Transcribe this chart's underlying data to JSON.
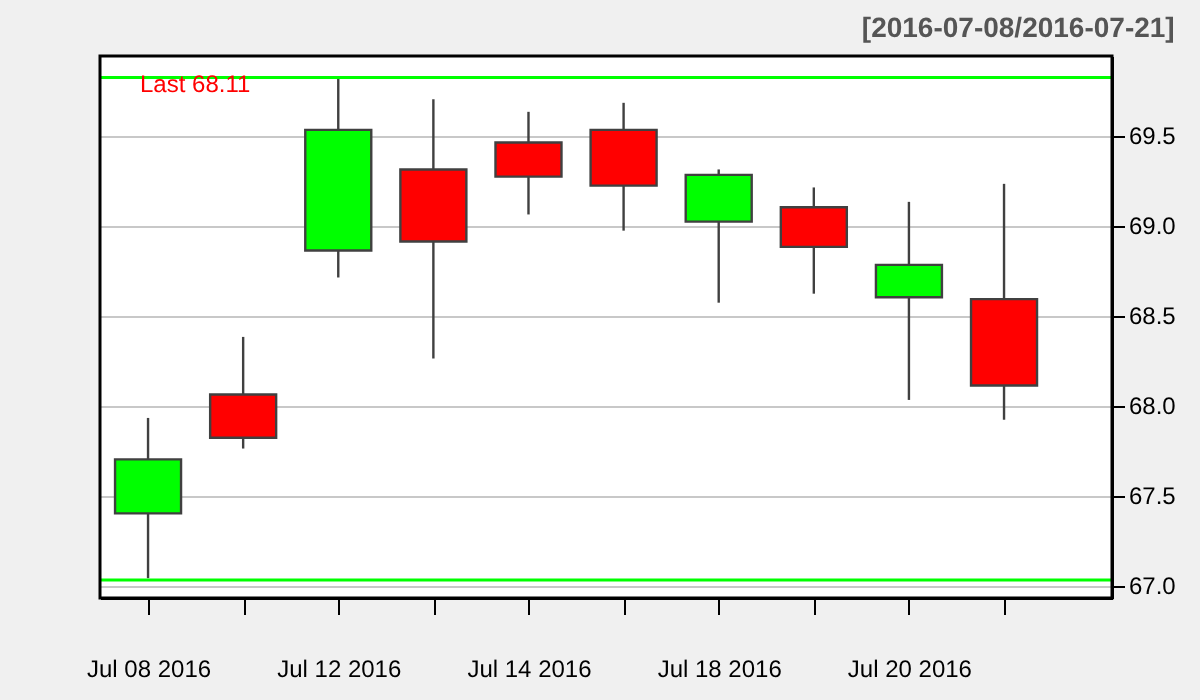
{
  "chart_data": {
    "type": "candlestick",
    "title": "[2016-07-08/2016-07-21]",
    "categories": [
      "Jul 08 2016",
      null,
      "Jul 12 2016",
      null,
      "Jul 14 2016",
      null,
      "Jul 18 2016",
      null,
      "Jul 20 2016",
      null
    ],
    "ohlc": [
      [
        67.4,
        67.93,
        67.04,
        67.7
      ],
      [
        68.06,
        68.38,
        67.76,
        67.82
      ],
      [
        68.86,
        69.82,
        68.71,
        69.53
      ],
      [
        69.31,
        69.7,
        68.26,
        68.91
      ],
      [
        69.46,
        69.63,
        69.06,
        69.27
      ],
      [
        69.53,
        69.68,
        68.97,
        69.22
      ],
      [
        69.02,
        69.31,
        68.57,
        69.28
      ],
      [
        69.1,
        69.21,
        68.62,
        68.88
      ],
      [
        68.6,
        69.13,
        68.03,
        68.78
      ],
      [
        68.59,
        69.23,
        67.92,
        68.11
      ]
    ],
    "colors": [
      "#00ff00",
      "#ff0000",
      "#00ff00",
      "#ff0000",
      "#ff0000",
      "#ff0000",
      "#00ff00",
      "#ff0000",
      "#00ff00",
      "#ff0000"
    ],
    "ylim": [
      66.93,
      69.94
    ],
    "yticks": [
      {
        "value": 67,
        "label": "67.0"
      },
      {
        "value": 67.5,
        "label": "67.5"
      },
      {
        "value": 68,
        "label": "68.0"
      },
      {
        "value": 68.5,
        "label": "68.5"
      },
      {
        "value": 69,
        "label": "69.0"
      },
      {
        "value": 69.5,
        "label": "69.5"
      }
    ],
    "ref_lines": [
      {
        "axis": "y",
        "value": 69.82,
        "color": "#00ff00"
      },
      {
        "axis": "y",
        "value": 67.03,
        "color": "#00ff00"
      }
    ],
    "annotations": [
      "Last 68.11"
    ],
    "grid": "y"
  }
}
